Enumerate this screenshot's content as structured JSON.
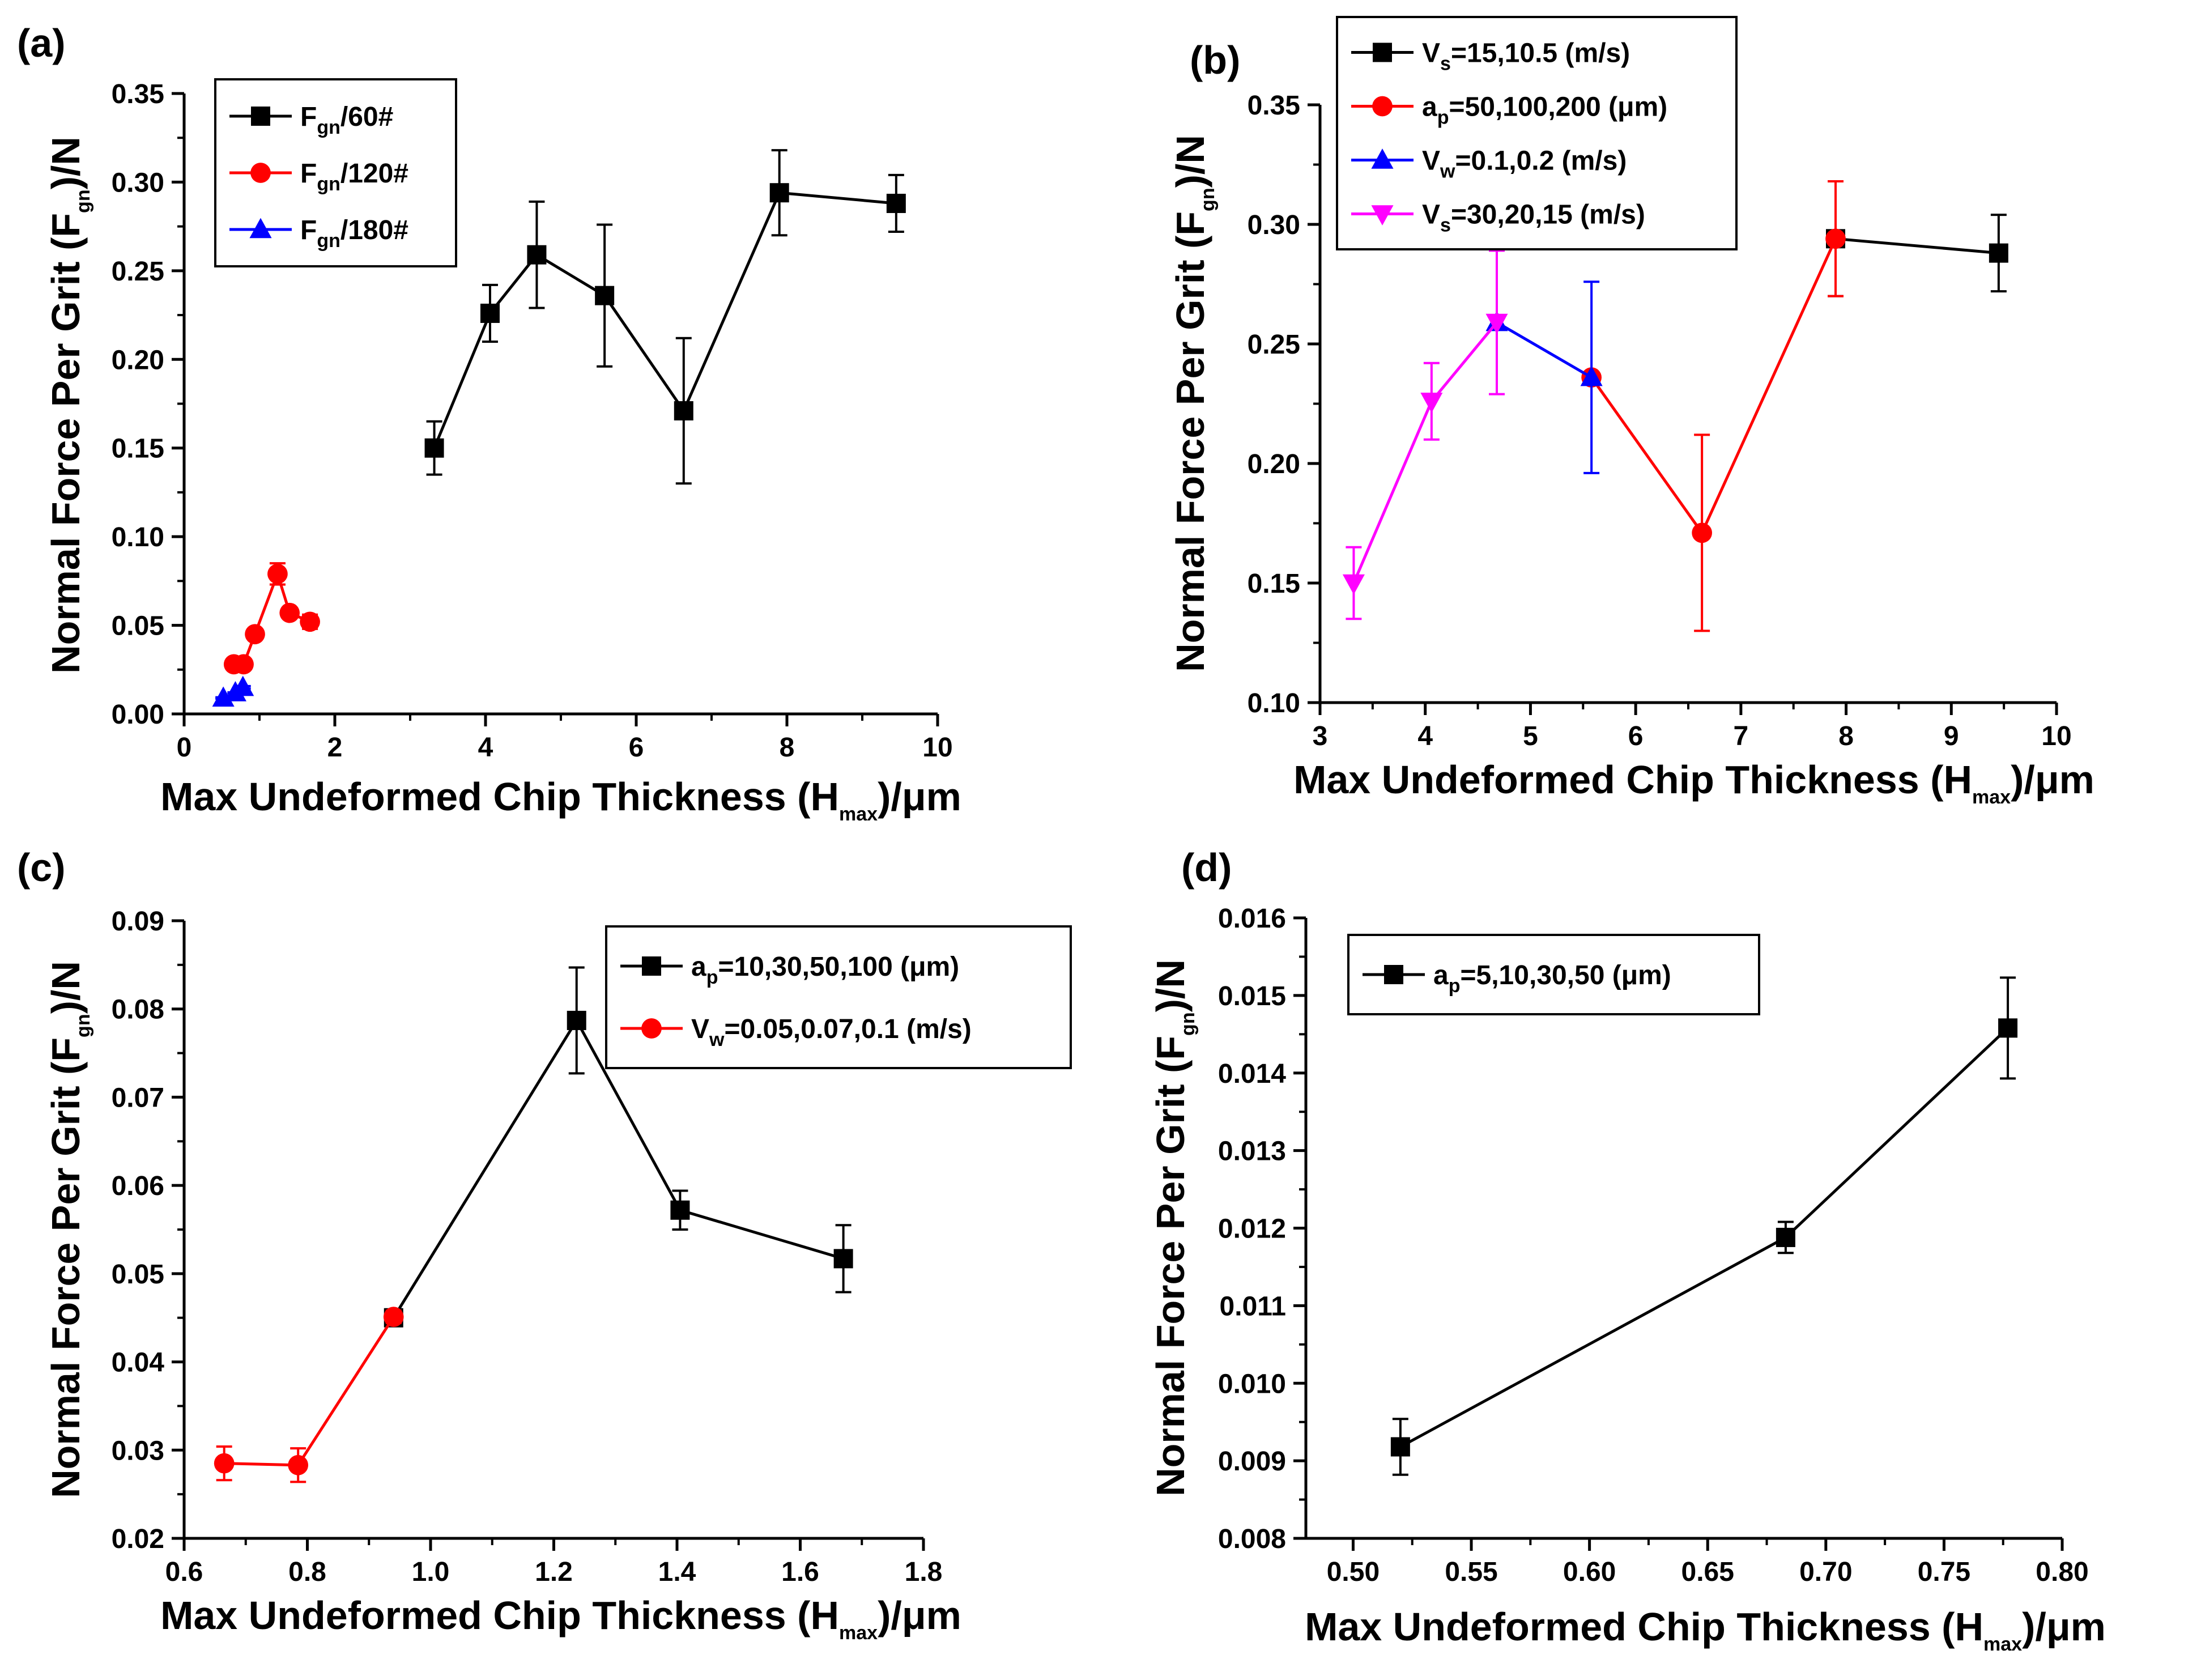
{
  "chart_data": [
    {
      "type": "line",
      "panel_label": "(a)",
      "xlabel": "Max Undeformed Chip Thickness (Hmax)/μm",
      "xlabel_parts": {
        "pre": "Max Undeformed Chip Thickness (H",
        "sub": "max",
        "post": ")/μm"
      },
      "ylabel": "Normal Force Per Grit (Fgn)/N",
      "ylabel_parts": {
        "pre": "Normal Force Per Grit (F",
        "sub": "gn",
        "post": ")/N"
      },
      "xlim": [
        0,
        10
      ],
      "ylim": [
        0,
        0.35
      ],
      "xticks": [
        0,
        2,
        4,
        6,
        8,
        10
      ],
      "xtick_labels": [
        "0",
        "2",
        "4",
        "6",
        "8",
        "10"
      ],
      "yticks": [
        0,
        0.05,
        0.1,
        0.15,
        0.2,
        0.25,
        0.3,
        0.35
      ],
      "ytick_labels": [
        "0.00",
        "0.05",
        "0.10",
        "0.15",
        "0.20",
        "0.25",
        "0.30",
        "0.35"
      ],
      "legend_position": "upper-left",
      "series": [
        {
          "name": "Fgn/60#",
          "legend_parts": {
            "pre": "F",
            "sub": "gn",
            "post": "/60#"
          },
          "color": "#000000",
          "marker": "square",
          "x": [
            3.32,
            4.06,
            4.68,
            5.58,
            6.63,
            7.9,
            9.45
          ],
          "y": [
            0.15,
            0.226,
            0.259,
            0.236,
            0.171,
            0.294,
            0.288
          ],
          "err": [
            0.015,
            0.016,
            0.03,
            0.04,
            0.041,
            0.024,
            0.016
          ]
        },
        {
          "name": "Fgn/120#",
          "legend_parts": {
            "pre": "F",
            "sub": "gn",
            "post": "/120#"
          },
          "color": "#ff0000",
          "marker": "circle",
          "x": [
            0.66,
            0.79,
            0.94,
            1.24,
            1.4,
            1.67
          ],
          "y": [
            0.028,
            0.028,
            0.045,
            0.079,
            0.057,
            0.052
          ],
          "err": [
            0.002,
            0.002,
            0.001,
            0.006,
            0.002,
            0.004
          ]
        },
        {
          "name": "Fgn/180#",
          "legend_parts": {
            "pre": "F",
            "sub": "gn",
            "post": "/180#"
          },
          "color": "#0000ff",
          "marker": "triangle-up",
          "x": [
            0.52,
            0.68,
            0.78
          ],
          "y": [
            0.009,
            0.012,
            0.015
          ],
          "err": [
            0.0004,
            0.0002,
            0.0007
          ]
        }
      ]
    },
    {
      "type": "line",
      "panel_label": "(b)",
      "xlabel": "Max Undeformed Chip Thickness (Hmax)/μm",
      "xlabel_parts": {
        "pre": "Max Undeformed Chip Thickness (H",
        "sub": "max",
        "post": ")/μm"
      },
      "ylabel": "Normal Force Per Grit (Fgn)/N",
      "ylabel_parts": {
        "pre": "Normal Force Per Grit (F",
        "sub": "gn",
        "post": ")/N"
      },
      "xlim": [
        3,
        10
      ],
      "ylim": [
        0.1,
        0.35
      ],
      "xticks": [
        3,
        4,
        5,
        6,
        7,
        8,
        9,
        10
      ],
      "xtick_labels": [
        "3",
        "4",
        "5",
        "6",
        "7",
        "8",
        "9",
        "10"
      ],
      "yticks": [
        0.1,
        0.15,
        0.2,
        0.25,
        0.3,
        0.35
      ],
      "ytick_labels": [
        "0.10",
        "0.15",
        "0.20",
        "0.25",
        "0.30",
        "0.35"
      ],
      "legend_position": "upper-left",
      "series": [
        {
          "name": "Vs=15,10.5 (m/s)",
          "legend_parts": {
            "pre": "V",
            "sub": "s",
            "post": "=15,10.5 (m/s)"
          },
          "color": "#000000",
          "marker": "square",
          "x": [
            7.9,
            9.45
          ],
          "y": [
            0.294,
            0.288
          ],
          "err": [
            0.024,
            0.016
          ]
        },
        {
          "name": "ap=50,100,200 (μm)",
          "legend_parts": {
            "pre": "a",
            "sub": "p",
            "post": "=50,100,200 (μm)"
          },
          "color": "#ff0000",
          "marker": "circle",
          "x": [
            5.58,
            6.63,
            7.9
          ],
          "y": [
            0.236,
            0.171,
            0.294
          ],
          "err": [
            0.0,
            0.041,
            0.024
          ]
        },
        {
          "name": "Vw=0.1,0.2 (m/s)",
          "legend_parts": {
            "pre": "V",
            "sub": "w",
            "post": "=0.1,0.2 (m/s)"
          },
          "color": "#0000ff",
          "marker": "triangle-up",
          "x": [
            4.68,
            5.58
          ],
          "y": [
            0.259,
            0.236
          ],
          "err": [
            0.0,
            0.04
          ]
        },
        {
          "name": "Vs=30,20,15 (m/s)",
          "legend_parts": {
            "pre": "V",
            "sub": "s",
            "post": "=30,20,15 (m/s)"
          },
          "color": "#ff00ff",
          "marker": "triangle-down",
          "x": [
            3.32,
            4.06,
            4.68
          ],
          "y": [
            0.15,
            0.226,
            0.259
          ],
          "err": [
            0.015,
            0.016,
            0.03
          ]
        }
      ]
    },
    {
      "type": "line",
      "panel_label": "(c)",
      "xlabel": "Max Undeformed Chip Thickness (Hmax)/μm",
      "xlabel_parts": {
        "pre": "Max Undeformed Chip Thickness (H",
        "sub": "max",
        "post": ")/μm"
      },
      "ylabel": "Normal Force Per Grit (Fgn)/N",
      "ylabel_parts": {
        "pre": "Normal Force Per Grit (F",
        "sub": "gn",
        "post": ")/N"
      },
      "xlim": [
        0.6,
        1.8
      ],
      "ylim": [
        0.02,
        0.09
      ],
      "xticks": [
        0.6,
        0.8,
        1.0,
        1.2,
        1.4,
        1.6,
        1.8
      ],
      "xtick_labels": [
        "0.6",
        "0.8",
        "1.0",
        "1.2",
        "1.4",
        "1.6",
        "1.8"
      ],
      "yticks": [
        0.02,
        0.03,
        0.04,
        0.05,
        0.06,
        0.07,
        0.08,
        0.09
      ],
      "ytick_labels": [
        "0.02",
        "0.03",
        "0.04",
        "0.05",
        "0.06",
        "0.07",
        "0.08",
        "0.09"
      ],
      "legend_position": "upper-right",
      "series": [
        {
          "name": "ap=10,30,50,100 (μm)",
          "legend_parts": {
            "pre": "a",
            "sub": "p",
            "post": "=10,30,50,100 (μm)"
          },
          "color": "#000000",
          "marker": "square",
          "x": [
            0.94,
            1.237,
            1.405,
            1.67
          ],
          "y": [
            0.045,
            0.0787,
            0.0572,
            0.0517
          ],
          "err": [
            0.0,
            0.006,
            0.0022,
            0.0038
          ]
        },
        {
          "name": "Vw=0.05,0.07,0.1 (m/s)",
          "legend_parts": {
            "pre": "V",
            "sub": "w",
            "post": "=0.05,0.07,0.1 (m/s)"
          },
          "color": "#ff0000",
          "marker": "circle",
          "x": [
            0.665,
            0.785,
            0.94
          ],
          "y": [
            0.0285,
            0.0283,
            0.0451
          ],
          "err": [
            0.0019,
            0.0019,
            0.0007
          ]
        }
      ]
    },
    {
      "type": "line",
      "panel_label": "(d)",
      "xlabel": "Max Undeformed Chip Thickness (Hmax)/μm",
      "xlabel_parts": {
        "pre": "Max Undeformed Chip Thickness (H",
        "sub": "max",
        "post": ")/μm"
      },
      "ylabel": "Normal Force Per Grit (Fgn)/N",
      "ylabel_parts": {
        "pre": "Normal Force Per Grit (F",
        "sub": "gn",
        "post": ")/N"
      },
      "xlim": [
        0.48,
        0.8
      ],
      "ylim": [
        0.008,
        0.016
      ],
      "xticks": [
        0.5,
        0.55,
        0.6,
        0.65,
        0.7,
        0.75,
        0.8
      ],
      "xtick_labels": [
        "0.50",
        "0.55",
        "0.60",
        "0.65",
        "0.70",
        "0.75",
        "0.80"
      ],
      "yticks": [
        0.008,
        0.009,
        0.01,
        0.011,
        0.012,
        0.013,
        0.014,
        0.015,
        0.016
      ],
      "ytick_labels": [
        "0.008",
        "0.009",
        "0.010",
        "0.011",
        "0.012",
        "0.013",
        "0.014",
        "0.015",
        "0.016"
      ],
      "legend_position": "upper-left",
      "series": [
        {
          "name": "ap=5,10,30,50 (μm)",
          "legend_parts": {
            "pre": "a",
            "sub": "p",
            "post": "=5,10,30,50 (μm)"
          },
          "color": "#000000",
          "marker": "square",
          "x": [
            0.52,
            0.683,
            0.777
          ],
          "y": [
            0.00918,
            0.01188,
            0.01458
          ],
          "err": [
            0.00036,
            0.0002,
            0.00065
          ]
        }
      ]
    }
  ]
}
